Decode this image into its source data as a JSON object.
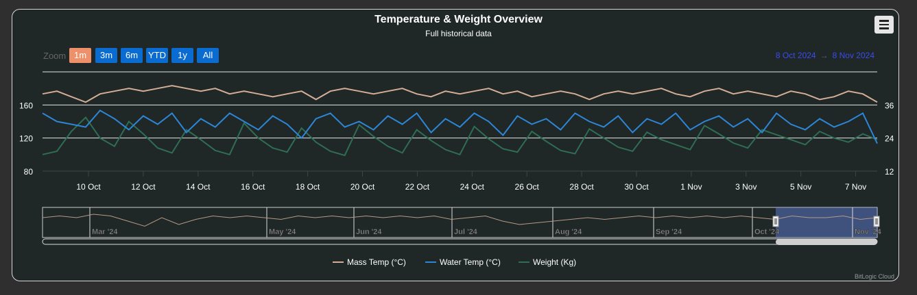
{
  "title": "Temperature & Weight Overview",
  "subtitle": "Full historical data",
  "zoom": {
    "label": "Zoom",
    "buttons": [
      "1m",
      "3m",
      "6m",
      "YTD",
      "1y",
      "All"
    ],
    "selected": "1m"
  },
  "range": {
    "from": "8 Oct 2024",
    "arrow": "→",
    "to": "8 Nov 2024"
  },
  "credit": "BitLogic Cloud",
  "colors": {
    "mass": "#d4ae96",
    "water": "#2e86d6",
    "weight": "#2f6e53"
  },
  "chart_data": {
    "type": "line",
    "title": "Temperature & Weight Overview",
    "x_start": "8 Oct 2024 14:00",
    "x_step_hours": 12,
    "x_ticks": [
      "10 Oct",
      "12 Oct",
      "14 Oct",
      "16 Oct",
      "18 Oct",
      "20 Oct",
      "22 Oct",
      "24 Oct",
      "26 Oct",
      "28 Oct",
      "30 Oct",
      "1 Nov",
      "3 Nov",
      "5 Nov",
      "7 Nov"
    ],
    "left_axis": {
      "ticks": [
        "80",
        "120",
        "160"
      ],
      "range": [
        80,
        200
      ]
    },
    "right_axis": {
      "ticks": [
        "12",
        "24",
        "36"
      ],
      "range": [
        12,
        48
      ]
    },
    "grid": true,
    "legend": "bottom",
    "series": [
      {
        "name": "Mass Temp (°C)",
        "axis": "right",
        "values": [
          40,
          41,
          39,
          37,
          40,
          41,
          42,
          41,
          42,
          43,
          42,
          41,
          42,
          40,
          41,
          40,
          39,
          40,
          41,
          38,
          41,
          42,
          41,
          40,
          41,
          42,
          40,
          39,
          41,
          40,
          41,
          42,
          40,
          41,
          39,
          40,
          41,
          40,
          38,
          40,
          41,
          40,
          41,
          42,
          40,
          39,
          41,
          42,
          40,
          41,
          40,
          39,
          41,
          40,
          38,
          39,
          41,
          40,
          37
        ]
      },
      {
        "name": "Water Temp (°C)",
        "axis": "right",
        "values": [
          33,
          30,
          29,
          28,
          34,
          31,
          27,
          32,
          29,
          33,
          26,
          31,
          28,
          33,
          30,
          27,
          32,
          29,
          24,
          31,
          33,
          28,
          30,
          27,
          32,
          29,
          33,
          26,
          31,
          28,
          33,
          30,
          25,
          32,
          29,
          31,
          27,
          33,
          30,
          28,
          32,
          26,
          31,
          29,
          33,
          27,
          30,
          32,
          28,
          31,
          26,
          33,
          29,
          27,
          31,
          28,
          30,
          33,
          22
        ]
      },
      {
        "name": "Weight (Kg)",
        "axis": "left",
        "values": [
          100,
          104,
          128,
          145,
          120,
          110,
          140,
          125,
          108,
          102,
          130,
          118,
          105,
          100,
          138,
          120,
          108,
          103,
          132,
          115,
          104,
          99,
          136,
          122,
          110,
          102,
          130,
          117,
          106,
          100,
          134,
          119,
          107,
          103,
          128,
          116,
          105,
          101,
          131,
          120,
          109,
          104,
          127,
          118,
          112,
          106,
          135,
          125,
          114,
          108,
          130,
          124,
          118,
          112,
          128,
          120,
          115,
          125,
          118
        ]
      }
    ],
    "navigator": {
      "months": [
        "Mar '24",
        "May '24",
        "Jun '24",
        "Jul '24",
        "Aug '24",
        "Sep '24",
        "Oct '24",
        "Nov '24"
      ],
      "values": [
        40,
        41,
        40,
        42,
        41,
        38,
        35,
        40,
        36,
        39,
        41,
        40,
        41,
        40,
        39,
        41,
        40,
        41,
        40,
        41,
        40,
        41,
        40,
        41,
        39,
        40,
        41,
        38,
        36,
        37,
        38,
        39,
        40,
        39,
        40,
        41,
        40,
        41,
        40,
        41,
        40,
        41,
        40,
        39,
        41,
        40,
        40,
        41,
        39,
        40
      ]
    }
  }
}
